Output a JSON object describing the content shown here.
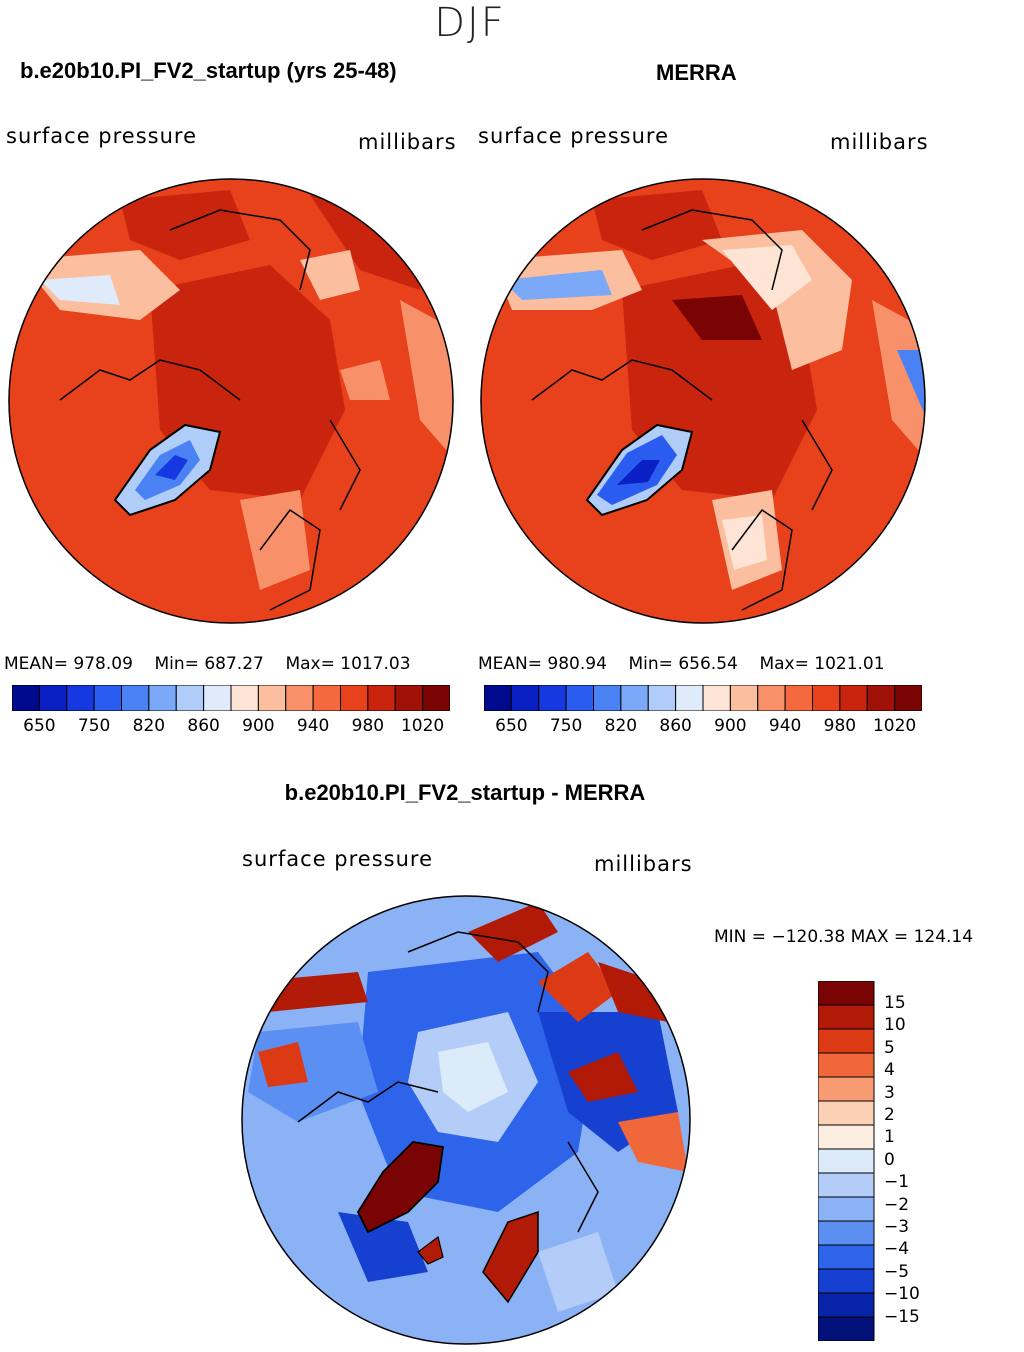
{
  "season": "DJF",
  "panels": [
    {
      "title": "b.e20b10.PI_FV2_startup (yrs 25-48)",
      "left_label": "surface pressure",
      "right_label": "millibars",
      "stats": {
        "mean_label": "MEAN=",
        "mean": "978.09",
        "min_label": "Min=",
        "min": "687.27",
        "max_label": "Max=",
        "max": "1017.03"
      }
    },
    {
      "title": "MERRA",
      "left_label": "surface pressure",
      "right_label": "millibars",
      "stats": {
        "mean_label": "MEAN=",
        "mean": "980.94",
        "min_label": "Min=",
        "min": "656.54",
        "max_label": "Max=",
        "max": "1021.01"
      }
    }
  ],
  "colorbar_top": {
    "colors": [
      "#000a8c",
      "#0a20c4",
      "#1638e0",
      "#2a5cf0",
      "#4a82f4",
      "#7ba8f7",
      "#b0ccf8",
      "#dfeafb",
      "#fde4d4",
      "#fbbe9e",
      "#f8906a",
      "#f46a3e",
      "#e8421c",
      "#c8240e",
      "#a01208",
      "#7a0404"
    ],
    "tick_labels": [
      "650",
      "750",
      "820",
      "860",
      "900",
      "940",
      "980",
      "1020"
    ]
  },
  "difference": {
    "title": "b.e20b10.PI_FV2_startup - MERRA",
    "left_label": "surface pressure",
    "right_label": "millibars",
    "minmax": "MIN = −120.38 MAX = 124.14",
    "colorbar": {
      "colors": [
        "#7a0404",
        "#b01a06",
        "#dc3a14",
        "#f0683a",
        "#f89a72",
        "#fcd0b4",
        "#fdeee2",
        "#dcebfa",
        "#b4cdf8",
        "#8cb2f6",
        "#5c8ff2",
        "#2e64ea",
        "#1640d0",
        "#0824a8",
        "#02107a"
      ],
      "labels": [
        "15",
        "10",
        "5",
        "4",
        "3",
        "2",
        "1",
        "0",
        "−1",
        "−2",
        "−3",
        "−4",
        "−5",
        "−10",
        "−15"
      ]
    }
  }
}
